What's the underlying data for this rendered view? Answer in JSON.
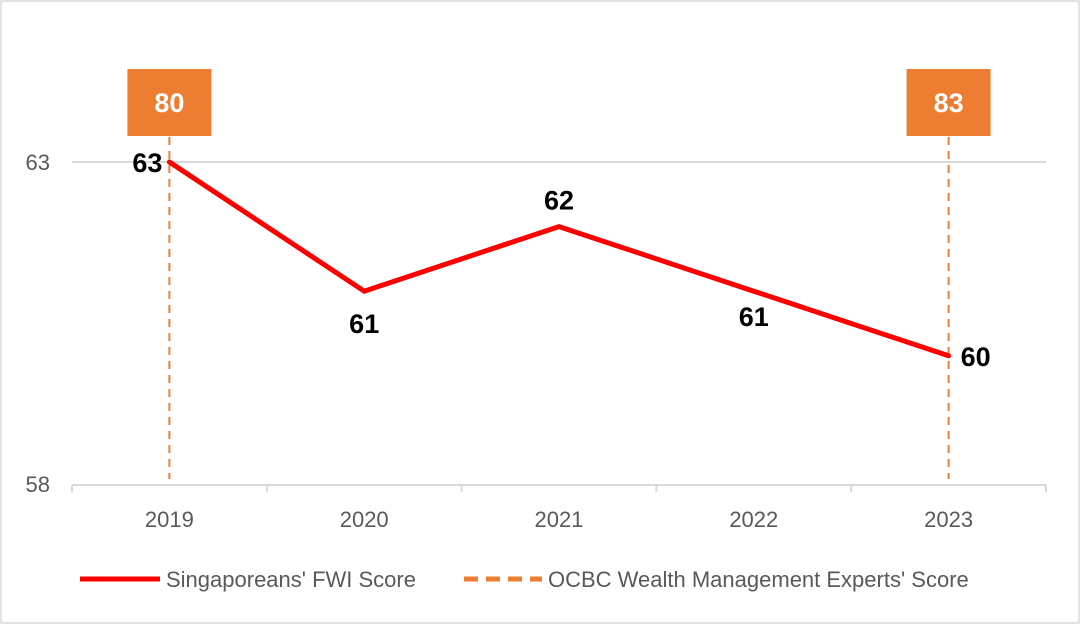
{
  "chart_data": {
    "type": "line",
    "categories": [
      "2019",
      "2020",
      "2021",
      "2022",
      "2023"
    ],
    "series": [
      {
        "name": "Singaporeans' FWI Score",
        "values": [
          63,
          61,
          62,
          61,
          60
        ],
        "labels": [
          "63",
          "61",
          "62",
          "61",
          "60"
        ],
        "color": "#ff0000",
        "style": "solid"
      },
      {
        "name": "OCBC Wealth Management Experts' Score",
        "values": {
          "2019": 80,
          "2023": 83
        },
        "labels": {
          "2019": "80",
          "2023": "83"
        },
        "color": "#ed7d31",
        "style": "dashed"
      }
    ],
    "y_ticks": [
      "58",
      "63"
    ],
    "ylim": [
      58,
      63
    ],
    "grid": true,
    "legend_position": "bottom"
  }
}
